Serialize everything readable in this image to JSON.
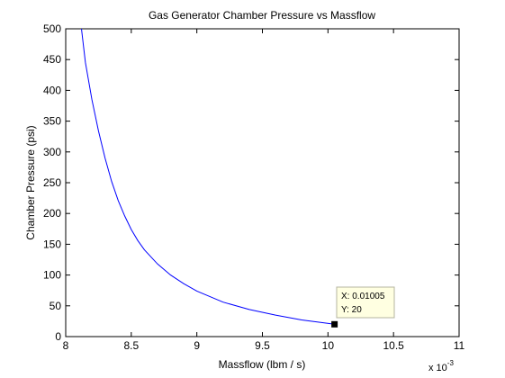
{
  "chart_data": {
    "type": "line",
    "title": "Gas Generator Chamber Pressure vs Massflow",
    "xlabel": "Massflow (lbm / s)",
    "ylabel": "Chamber Pressure (psi)",
    "x_multiplier_base": "x 10",
    "x_multiplier_exp": "-3",
    "xlim": [
      8,
      11
    ],
    "ylim": [
      0,
      500
    ],
    "xticks": [
      8,
      8.5,
      9,
      9.5,
      10,
      10.5,
      11
    ],
    "xtick_labels": [
      "8",
      "8.5",
      "9",
      "9.5",
      "10",
      "10.5",
      "11"
    ],
    "yticks": [
      0,
      50,
      100,
      150,
      200,
      250,
      300,
      350,
      400,
      450,
      500
    ],
    "ytick_labels": [
      "0",
      "50",
      "100",
      "150",
      "200",
      "250",
      "300",
      "350",
      "400",
      "450",
      "500"
    ],
    "grid": false,
    "series": [
      {
        "color": "#0000ff",
        "x": [
          8.12,
          8.15,
          8.2,
          8.25,
          8.3,
          8.35,
          8.4,
          8.45,
          8.5,
          8.55,
          8.6,
          8.7,
          8.8,
          8.9,
          9.0,
          9.2,
          9.4,
          9.6,
          9.8,
          10.05
        ],
        "y": [
          500,
          445,
          385,
          334,
          290,
          252,
          221,
          196,
          174,
          156,
          141,
          118,
          100,
          86,
          74,
          56,
          44,
          35,
          27,
          20
        ]
      }
    ],
    "datatip": {
      "x_value": 10.05,
      "y_value": 20,
      "line1": "X: 0.01005",
      "line2": "Y: 20"
    }
  }
}
